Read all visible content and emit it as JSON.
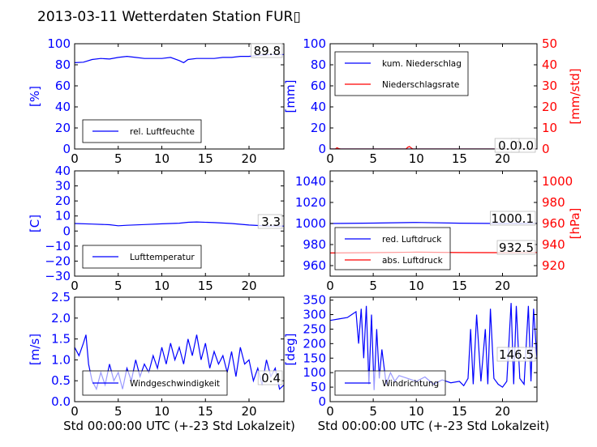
{
  "title": "2013-03-11 Wetterdaten Station FUR▯",
  "colors": {
    "primary": "#0000ff",
    "secondary": "#ff0000",
    "axis": "#000000",
    "label_box": "#bbbbbb"
  },
  "chart_data": [
    {
      "type": "line",
      "panel": "humidity",
      "ylabel": "[%]",
      "ylim": [
        0,
        100
      ],
      "yticks": [
        "0",
        "20",
        "40",
        "60",
        "80",
        "100"
      ],
      "xlim": [
        0,
        24
      ],
      "xticks": [
        "0",
        "5",
        "10",
        "15",
        "20"
      ],
      "legend": [
        "rel. Luftfeuchte"
      ],
      "legend_position": "lower-left",
      "annotations": [
        "89.8"
      ],
      "series": [
        {
          "name": "rel. Luftfeuchte",
          "color": "#0000ff",
          "x": [
            0,
            1,
            2,
            3,
            4,
            5,
            6,
            7,
            8,
            9,
            10,
            11,
            12,
            12.5,
            13,
            14,
            15,
            16,
            17,
            18,
            19,
            20,
            21,
            22,
            23,
            24
          ],
          "y": [
            82,
            82.5,
            85,
            86,
            85.5,
            87,
            88,
            87,
            86,
            86,
            86,
            87,
            84,
            82,
            85,
            86,
            86,
            86,
            87,
            87,
            88,
            88,
            89,
            89.5,
            89.8,
            89.8
          ]
        }
      ]
    },
    {
      "type": "line",
      "panel": "precipitation",
      "ylabel": "[mm]",
      "ylabel_right": "[mm/std]",
      "ylim": [
        0,
        100
      ],
      "yticks": [
        "0",
        "20",
        "40",
        "60",
        "80",
        "100"
      ],
      "ylim_right": [
        0,
        50
      ],
      "yticks_right": [
        "0",
        "10",
        "20",
        "30",
        "40",
        "50"
      ],
      "xlim": [
        0,
        24
      ],
      "xticks": [
        "0",
        "5",
        "10",
        "15",
        "20"
      ],
      "legend": [
        "kum. Niederschlag",
        "Niederschlagsrate"
      ],
      "legend_position": "upper-left",
      "annotations": [
        "0.0",
        "0.0"
      ],
      "series": [
        {
          "name": "kum. Niederschlag",
          "color": "#0000ff",
          "x": [
            0,
            24
          ],
          "y": [
            0,
            0
          ]
        },
        {
          "name": "Niederschlagsrate",
          "color": "#ff0000",
          "x": [
            0,
            0.6,
            0.8,
            1,
            1.2,
            8.8,
            9,
            9.2,
            9.4,
            9.6,
            24
          ],
          "y": [
            0,
            0,
            0.6,
            0.2,
            0,
            0,
            0.8,
            1.2,
            0.5,
            0,
            0
          ]
        }
      ]
    },
    {
      "type": "line",
      "panel": "temperature",
      "ylabel": "[C]",
      "ylim": [
        -30,
        40
      ],
      "yticks": [
        "−30",
        "−20",
        "−10",
        "0",
        "10",
        "20",
        "30",
        "40"
      ],
      "xlim": [
        0,
        24
      ],
      "xticks": [
        "0",
        "5",
        "10",
        "15",
        "20"
      ],
      "legend": [
        "Lufttemperatur"
      ],
      "legend_position": "lower-left",
      "annotations": [
        "3.3"
      ],
      "series": [
        {
          "name": "Lufttemperatur",
          "color": "#0000ff",
          "x": [
            0,
            2,
            4,
            5,
            6,
            8,
            10,
            12,
            13,
            14,
            16,
            18,
            20,
            22,
            24
          ],
          "y": [
            5,
            4.6,
            4.2,
            3.5,
            3.8,
            4.3,
            4.8,
            5.2,
            5.8,
            6,
            5.6,
            5,
            4,
            3.4,
            3.3
          ]
        }
      ]
    },
    {
      "type": "line",
      "panel": "pressure",
      "ylabel_right": "[hPa]",
      "ylim": [
        950,
        1050
      ],
      "yticks": [
        "960",
        "980",
        "1000",
        "1020",
        "1040"
      ],
      "ylim_right": [
        910,
        1010
      ],
      "yticks_right": [
        "920",
        "940",
        "960",
        "980",
        "1000"
      ],
      "xlim": [
        0,
        24
      ],
      "xticks": [
        "0",
        "5",
        "10",
        "15",
        "20"
      ],
      "legend": [
        "red. Luftdruck",
        "abs. Luftdruck"
      ],
      "legend_position": "lower-left",
      "annotations": [
        "1000.1",
        "932.5"
      ],
      "series": [
        {
          "name": "red. Luftdruck",
          "color": "#0000ff",
          "x": [
            0,
            5,
            10,
            15,
            20,
            24
          ],
          "y": [
            1000,
            1000.4,
            1001,
            1000.3,
            1000,
            1000.1
          ]
        },
        {
          "name": "abs. Luftdruck",
          "color": "#ff0000",
          "x": [
            0,
            5,
            10,
            15,
            20,
            24
          ],
          "y": [
            932,
            932.3,
            932.8,
            932.4,
            932.3,
            932.5
          ]
        }
      ]
    },
    {
      "type": "line",
      "panel": "wind-speed",
      "ylabel": "[m/s]",
      "xlabel": "Std 00:00:00 UTC (+-23 Std Lokalzeit)",
      "ylim": [
        0,
        2.5
      ],
      "yticks": [
        "0.0",
        "0.5",
        "1.0",
        "1.5",
        "2.0",
        "2.5"
      ],
      "xlim": [
        0,
        24
      ],
      "xticks": [
        "0",
        "5",
        "10",
        "15",
        "20"
      ],
      "legend": [
        "Windgeschwindigkeit"
      ],
      "legend_position": "lower-left",
      "annotations": [
        "0.4"
      ],
      "series": [
        {
          "name": "Windgeschwindigkeit",
          "color": "#0000ff",
          "x": [
            0,
            0.5,
            1,
            1.3,
            1.6,
            2,
            2.5,
            3,
            3.5,
            4,
            4.5,
            5,
            5.5,
            6,
            6.5,
            7,
            7.5,
            8,
            8.5,
            9,
            9.5,
            10,
            10.5,
            11,
            11.5,
            12,
            12.5,
            13,
            13.5,
            14,
            14.5,
            15,
            15.5,
            16,
            16.5,
            17,
            17.5,
            18,
            18.5,
            19,
            19.5,
            20,
            20.5,
            21,
            21.5,
            22,
            22.5,
            23,
            23.5,
            24
          ],
          "y": [
            1.3,
            1.1,
            1.4,
            1.6,
            0.9,
            0.5,
            0.3,
            0.7,
            0.4,
            0.9,
            0.5,
            0.7,
            0.3,
            0.8,
            0.5,
            1.0,
            0.6,
            0.9,
            0.7,
            1.1,
            0.8,
            1.3,
            0.9,
            1.4,
            1.0,
            1.3,
            0.9,
            1.5,
            1.1,
            1.6,
            1.0,
            1.4,
            0.8,
            1.2,
            0.9,
            1.1,
            0.7,
            1.2,
            0.6,
            1.3,
            0.9,
            1.0,
            0.5,
            0.8,
            0.4,
            1.0,
            0.6,
            0.8,
            0.3,
            0.4
          ]
        }
      ]
    },
    {
      "type": "line",
      "panel": "wind-direction",
      "ylabel": "[deg]",
      "xlabel": "Std 00:00:00 UTC (+-23 Std Lokalzeit)",
      "ylim": [
        0,
        360
      ],
      "yticks": [
        "0",
        "50",
        "100",
        "150",
        "200",
        "250",
        "300",
        "350"
      ],
      "xlim": [
        0,
        24
      ],
      "xticks": [
        "0",
        "5",
        "10",
        "15",
        "20"
      ],
      "legend": [
        "Windrichtung"
      ],
      "legend_position": "lower-left",
      "annotations": [
        "146.5"
      ],
      "series": [
        {
          "name": "Windrichtung",
          "color": "#0000ff",
          "x": [
            0,
            1,
            2,
            2.5,
            3,
            3.3,
            3.6,
            3.9,
            4.2,
            4.5,
            4.8,
            5.1,
            5.4,
            5.7,
            6,
            6.5,
            7,
            7.5,
            8,
            9,
            10,
            11,
            12,
            13,
            14,
            15,
            15.5,
            16,
            16.3,
            16.6,
            17,
            17.5,
            18,
            18.3,
            18.6,
            19,
            19.5,
            20,
            20.5,
            21,
            21.3,
            21.6,
            22,
            22.5,
            23,
            23.3,
            23.6,
            24
          ],
          "y": [
            280,
            285,
            290,
            300,
            310,
            200,
            320,
            150,
            330,
            60,
            300,
            40,
            250,
            80,
            180,
            60,
            100,
            70,
            90,
            80,
            70,
            85,
            60,
            75,
            65,
            70,
            55,
            80,
            250,
            60,
            300,
            70,
            250,
            60,
            320,
            80,
            60,
            50,
            70,
            340,
            60,
            330,
            80,
            60,
            330,
            70,
            320,
            146.5
          ]
        }
      ]
    }
  ]
}
